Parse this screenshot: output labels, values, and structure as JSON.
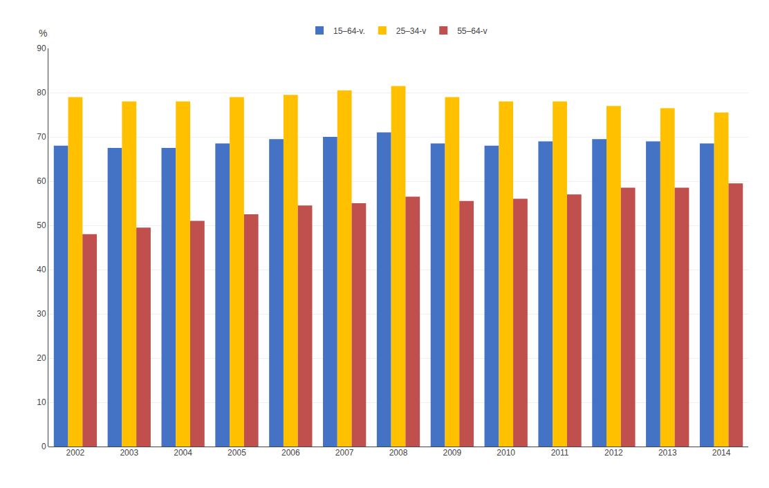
{
  "chart_data": {
    "type": "bar",
    "categories": [
      "2002",
      "2003",
      "2004",
      "2005",
      "2006",
      "2007",
      "2008",
      "2009",
      "2010",
      "2011",
      "2012",
      "2013",
      "2014"
    ],
    "series": [
      {
        "name": "15–64-v.",
        "color": "#4472C4",
        "values": [
          68.0,
          67.5,
          67.5,
          68.5,
          69.5,
          70.0,
          71.0,
          68.5,
          68.0,
          69.0,
          69.5,
          69.0,
          68.5
        ]
      },
      {
        "name": "25–34-v",
        "color": "#FFC000",
        "values": [
          79.0,
          78.0,
          78.0,
          79.0,
          79.5,
          80.5,
          81.5,
          79.0,
          78.0,
          78.0,
          77.0,
          76.5,
          75.5
        ]
      },
      {
        "name": "55–64-v",
        "color": "#C0504D",
        "values": [
          48.0,
          49.5,
          51.0,
          52.5,
          54.5,
          55.0,
          56.5,
          55.5,
          56.0,
          57.0,
          58.5,
          58.5,
          59.5
        ]
      }
    ],
    "ylabel": "%",
    "ylim": [
      0,
      90
    ],
    "yticks": [
      0,
      10,
      20,
      30,
      40,
      50,
      60,
      70,
      80,
      90
    ],
    "grid": true,
    "legend": "top"
  }
}
